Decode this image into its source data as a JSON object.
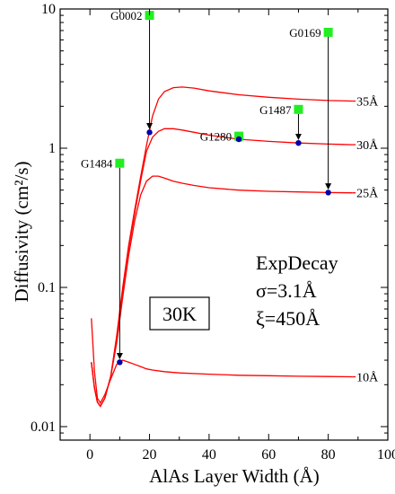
{
  "chart_data": {
    "type": "line",
    "title": "",
    "xlabel": "AlAs Layer Width (Å)",
    "ylabel": "Diffusivity (cm²/s)",
    "xlim": [
      -10,
      100
    ],
    "ylim": [
      0.008,
      10
    ],
    "yscale": "log",
    "grid": false,
    "x_ticks": [
      0,
      20,
      40,
      60,
      80,
      100
    ],
    "y_ticks": [
      {
        "value": 0.01,
        "label": "0.01"
      },
      {
        "value": 0.1,
        "label": "0.1"
      },
      {
        "value": 1,
        "label": "1"
      },
      {
        "value": 10,
        "label": "10"
      }
    ],
    "curve_color": "#ff0000",
    "measured_color": "#22ee22",
    "calc_color": "#0000aa",
    "series": [
      {
        "label": "35Å",
        "x": [
          0.5,
          1.5,
          2.5,
          3.5,
          5,
          7,
          9,
          11,
          13,
          15,
          17,
          19,
          21,
          23,
          25,
          28,
          31,
          35,
          40,
          50,
          60,
          70,
          80,
          88
        ],
        "y": [
          0.029,
          0.019,
          0.015,
          0.014,
          0.016,
          0.023,
          0.045,
          0.1,
          0.2,
          0.36,
          0.62,
          1.05,
          1.7,
          2.25,
          2.55,
          2.72,
          2.75,
          2.7,
          2.58,
          2.42,
          2.32,
          2.25,
          2.2,
          2.18
        ]
      },
      {
        "label": "30Å",
        "x": [
          0.5,
          1.5,
          2.5,
          3.5,
          5,
          7,
          9,
          11,
          13,
          15,
          17,
          19,
          21,
          23,
          25,
          28,
          31,
          35,
          40,
          50,
          60,
          70,
          80,
          88
        ],
        "y": [
          0.029,
          0.019,
          0.015,
          0.014,
          0.016,
          0.023,
          0.043,
          0.095,
          0.19,
          0.34,
          0.58,
          0.95,
          1.2,
          1.32,
          1.38,
          1.38,
          1.35,
          1.3,
          1.24,
          1.16,
          1.12,
          1.09,
          1.07,
          1.06
        ]
      },
      {
        "label": "25Å",
        "x": [
          0.5,
          1.5,
          2.5,
          3.5,
          5,
          7,
          9,
          11,
          13,
          15,
          17,
          19,
          21,
          23,
          25,
          28,
          31,
          35,
          40,
          50,
          60,
          70,
          80,
          88
        ],
        "y": [
          0.029,
          0.019,
          0.015,
          0.014,
          0.016,
          0.023,
          0.04,
          0.085,
          0.17,
          0.3,
          0.46,
          0.58,
          0.63,
          0.63,
          0.61,
          0.58,
          0.56,
          0.54,
          0.52,
          0.5,
          0.49,
          0.485,
          0.48,
          0.478
        ]
      },
      {
        "label": "10Å",
        "x": [
          0.5,
          1.5,
          2.5,
          3.5,
          5,
          7,
          9,
          11,
          13,
          15,
          17,
          19,
          21,
          25,
          30,
          40,
          50,
          60,
          70,
          80,
          88
        ],
        "y": [
          0.06,
          0.025,
          0.016,
          0.0148,
          0.017,
          0.022,
          0.028,
          0.03,
          0.029,
          0.028,
          0.027,
          0.026,
          0.0255,
          0.0248,
          0.0243,
          0.0238,
          0.0234,
          0.0232,
          0.023,
          0.0229,
          0.0228
        ]
      }
    ],
    "measured": [
      {
        "label": "G0002",
        "x": 20,
        "y": 9.0,
        "to_y": 1.3
      },
      {
        "label": "G1484",
        "x": 10,
        "y": 0.78,
        "to_y": 0.029
      },
      {
        "label": "G1280",
        "x": 50,
        "y": 1.22,
        "to_y": 1.16
      },
      {
        "label": "G1487",
        "x": 70,
        "y": 1.9,
        "to_y": 1.09
      },
      {
        "label": "G0169",
        "x": 80,
        "y": 6.8,
        "to_y": 0.48
      }
    ],
    "model_text": [
      "ExpDecay",
      "σ=3.1Å",
      "ξ=450Å"
    ],
    "temperature": "30K"
  }
}
